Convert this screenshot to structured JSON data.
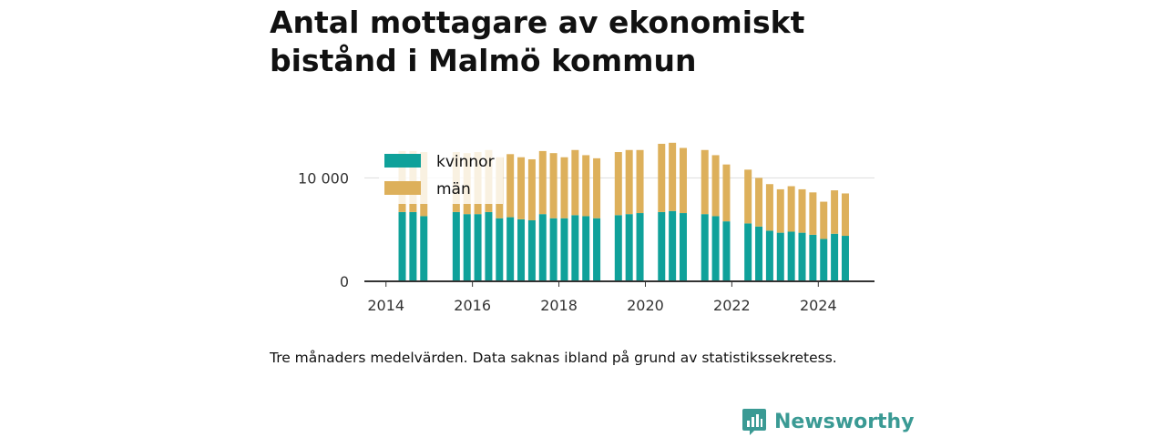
{
  "title": "Antal mottagare av ekonomiskt bistånd i Malmö kommun",
  "caption": "Tre månaders medelvärden. Data saknas ibland på grund av statistikssekretess.",
  "brand": {
    "name": "Newsworthy",
    "color": "#3a9a94"
  },
  "colors": {
    "kvinnor": "#0fa19a",
    "man": "#ddb05b",
    "grid": "#dddddd",
    "axis": "#333333",
    "text": "#333333"
  },
  "chart_data": {
    "type": "bar",
    "stacked": true,
    "xlabel": "",
    "ylabel": "",
    "xlim": [
      2013.5,
      2025.3
    ],
    "ylim": [
      0,
      14000
    ],
    "x_ticks": [
      2014,
      2016,
      2018,
      2020,
      2022,
      2024
    ],
    "y_ticks": [
      {
        "value": 0,
        "label": "0"
      },
      {
        "value": 10000,
        "label": "10 000"
      }
    ],
    "grid": "horizontal",
    "legend": {
      "position": "top-left",
      "entries": [
        "kvinnor",
        "män"
      ]
    },
    "x": [
      2014.375,
      2014.625,
      2014.875,
      2015.625,
      2015.875,
      2016.125,
      2016.375,
      2016.625,
      2016.875,
      2017.125,
      2017.375,
      2017.625,
      2017.875,
      2018.125,
      2018.375,
      2018.625,
      2018.875,
      2019.375,
      2019.625,
      2019.875,
      2020.375,
      2020.625,
      2020.875,
      2021.375,
      2021.625,
      2021.875,
      2022.375,
      2022.625,
      2022.875,
      2023.125,
      2023.375,
      2023.625,
      2023.875,
      2024.125,
      2024.375,
      2024.625
    ],
    "series": [
      {
        "name": "kvinnor",
        "values": [
          6700,
          6700,
          6300,
          6700,
          6500,
          6500,
          6700,
          6100,
          6200,
          6000,
          5900,
          6500,
          6100,
          6100,
          6400,
          6300,
          6100,
          6400,
          6500,
          6600,
          6700,
          6800,
          6600,
          6500,
          6300,
          5800,
          5600,
          5300,
          4900,
          4700,
          4800,
          4700,
          4500,
          4100,
          4600,
          4400
        ]
      },
      {
        "name": "män",
        "values": [
          5900,
          5900,
          6200,
          5800,
          5900,
          6000,
          6000,
          5900,
          6100,
          6000,
          5900,
          6100,
          6300,
          5900,
          6300,
          5900,
          5800,
          6100,
          6200,
          6100,
          6600,
          6600,
          6300,
          6200,
          5900,
          5500,
          5200,
          4700,
          4500,
          4200,
          4400,
          4200,
          4100,
          3600,
          4200,
          4100
        ]
      }
    ]
  }
}
